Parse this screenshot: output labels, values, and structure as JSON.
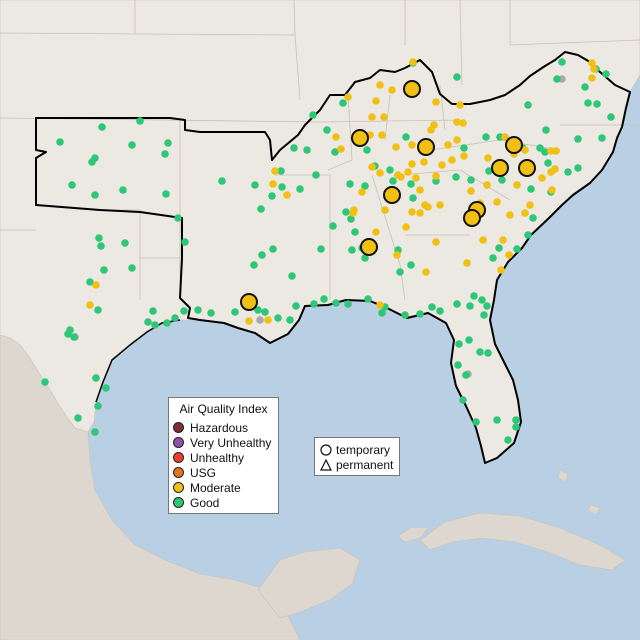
{
  "legend": {
    "title": "Air Quality Index",
    "categories": [
      {
        "label": "Hazardous",
        "color": "#7e2d33"
      },
      {
        "label": "Very Unhealthy",
        "color": "#8f52a5"
      },
      {
        "label": "Unhealthy",
        "color": "#e8412b"
      },
      {
        "label": "USG",
        "color": "#e3761c"
      },
      {
        "label": "Moderate",
        "color": "#f2c012"
      },
      {
        "label": "Good",
        "color": "#2ec778"
      }
    ]
  },
  "monitor_types": {
    "temporary": "temporary",
    "permanent": "permanent"
  },
  "colors": {
    "water": "#b8cfe4",
    "land": "#ece8e2",
    "good": "#2ec778",
    "moderate": "#f2c012",
    "no_data": "#aaaaaa"
  }
}
